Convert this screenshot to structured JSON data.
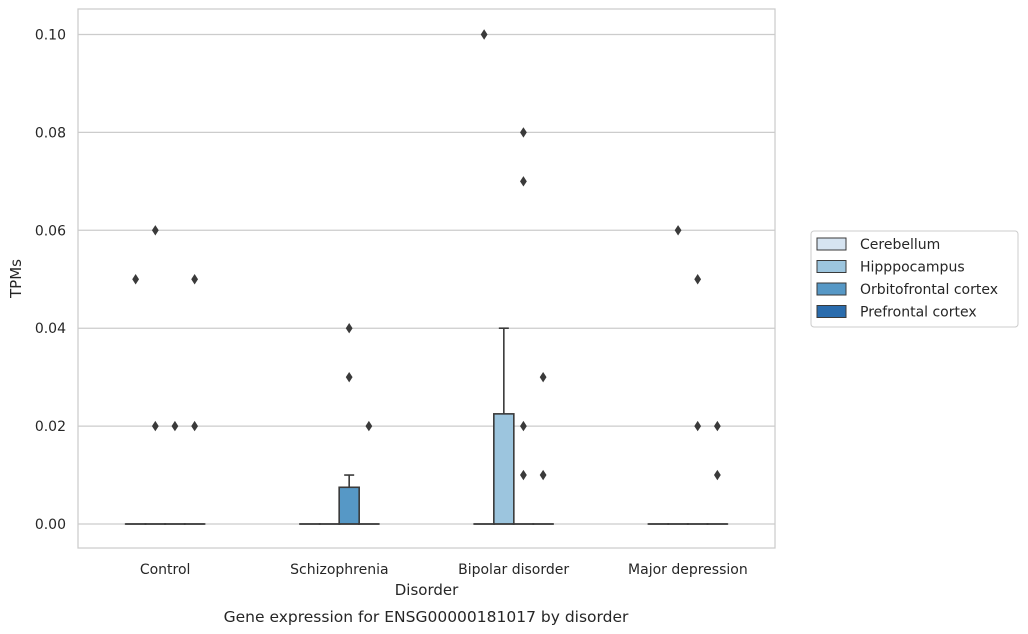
{
  "chart_data": {
    "type": "box",
    "title": "",
    "caption": "Gene expression for ENSG00000181017 by disorder",
    "xlabel": "Disorder",
    "ylabel": "TPMs",
    "ylim": [
      -0.005,
      0.105
    ],
    "yticks": [
      "0.00",
      "0.02",
      "0.04",
      "0.06",
      "0.08",
      "0.10"
    ],
    "ytick_values": [
      0,
      0.02,
      0.04,
      0.06,
      0.08,
      0.1
    ],
    "grid": "horizontal",
    "categories": [
      "Control",
      "Schizophrenia",
      "Bipolar disorder",
      "Major depression"
    ],
    "legend_position": "right",
    "series": [
      {
        "name": "Cerebellum",
        "color": "#d6e4f1",
        "boxes": [
          {
            "q1": 0,
            "median": 0,
            "q3": 0,
            "whisker_low": 0,
            "whisker_high": 0,
            "outliers": [
              0.05
            ]
          },
          {
            "q1": 0,
            "median": 0,
            "q3": 0,
            "whisker_low": 0,
            "whisker_high": 0,
            "outliers": []
          },
          {
            "q1": 0,
            "median": 0,
            "q3": 0,
            "whisker_low": 0,
            "whisker_high": 0,
            "outliers": [
              0.1
            ]
          },
          {
            "q1": 0,
            "median": 0,
            "q3": 0,
            "whisker_low": 0,
            "whisker_high": 0,
            "outliers": []
          }
        ]
      },
      {
        "name": "Hipppocampus",
        "color": "#9cc5de",
        "boxes": [
          {
            "q1": 0,
            "median": 0,
            "q3": 0,
            "whisker_low": 0,
            "whisker_high": 0,
            "outliers": [
              0.06,
              0.02
            ]
          },
          {
            "q1": 0,
            "median": 0,
            "q3": 0,
            "whisker_low": 0,
            "whisker_high": 0,
            "outliers": []
          },
          {
            "q1": 0,
            "median": 0,
            "q3": 0.0225,
            "whisker_low": 0,
            "whisker_high": 0.04,
            "outliers": []
          },
          {
            "q1": 0,
            "median": 0,
            "q3": 0,
            "whisker_low": 0,
            "whisker_high": 0,
            "outliers": [
              0.06
            ]
          }
        ]
      },
      {
        "name": "Orbitofrontal cortex",
        "color": "#5698c6",
        "boxes": [
          {
            "q1": 0,
            "median": 0,
            "q3": 0,
            "whisker_low": 0,
            "whisker_high": 0,
            "outliers": [
              0.02
            ]
          },
          {
            "q1": 0,
            "median": 0,
            "q3": 0.0075,
            "whisker_low": 0,
            "whisker_high": 0.01,
            "outliers": [
              0.04,
              0.03
            ]
          },
          {
            "q1": 0,
            "median": 0,
            "q3": 0,
            "whisker_low": 0,
            "whisker_high": 0,
            "outliers": [
              0.08,
              0.07,
              0.02,
              0.01
            ]
          },
          {
            "q1": 0,
            "median": 0,
            "q3": 0,
            "whisker_low": 0,
            "whisker_high": 0,
            "outliers": [
              0.05,
              0.02
            ]
          }
        ]
      },
      {
        "name": "Prefrontal cortex",
        "color": "#2a6cad",
        "boxes": [
          {
            "q1": 0,
            "median": 0,
            "q3": 0,
            "whisker_low": 0,
            "whisker_high": 0,
            "outliers": [
              0.05,
              0.02
            ]
          },
          {
            "q1": 0,
            "median": 0,
            "q3": 0,
            "whisker_low": 0,
            "whisker_high": 0,
            "outliers": [
              0.02
            ]
          },
          {
            "q1": 0,
            "median": 0,
            "q3": 0,
            "whisker_low": 0,
            "whisker_high": 0,
            "outliers": [
              0.03,
              0.01
            ]
          },
          {
            "q1": 0,
            "median": 0,
            "q3": 0,
            "whisker_low": 0,
            "whisker_high": 0,
            "outliers": [
              0.02,
              0.01
            ]
          }
        ]
      }
    ]
  }
}
